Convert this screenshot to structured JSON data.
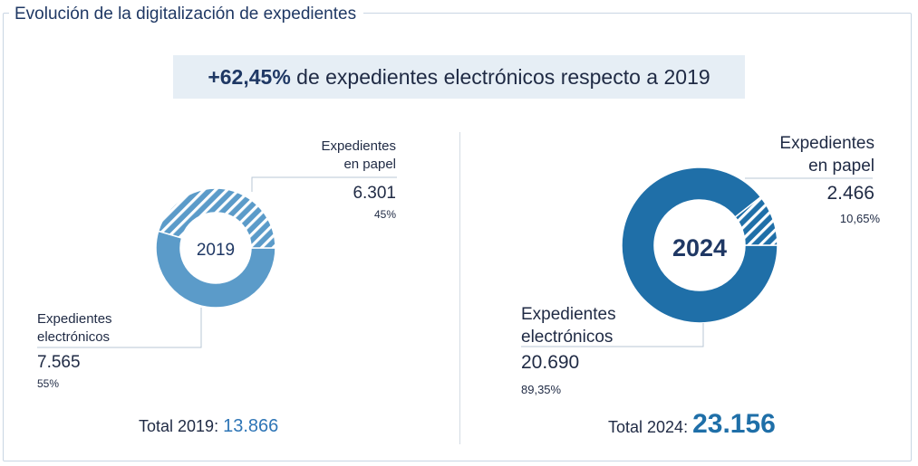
{
  "title": "Evolución de la digitalización de expedientes",
  "banner": {
    "highlight": "+62,45%",
    "text": "de expedientes electrónicos respecto a 2019"
  },
  "colors": {
    "light": "#5b9bc9",
    "dark": "#1f6fa8",
    "navy": "#1f3864",
    "total19": "#2e75b6"
  },
  "chart_data": [
    {
      "type": "pie",
      "title": "2019",
      "categories": [
        "Expedientes electrónicos",
        "Expedientes en papel"
      ],
      "values": [
        7565,
        6301
      ],
      "percent_labels": [
        "55%",
        "45%"
      ],
      "value_labels": [
        "7.565",
        "6.301"
      ],
      "total_label": "Total 2019:",
      "total_value": "13.866"
    },
    {
      "type": "pie",
      "title": "2024",
      "categories": [
        "Expedientes electrónicos",
        "Expedientes en papel"
      ],
      "values": [
        20690,
        2466
      ],
      "percent_labels": [
        "89,35%",
        "10,65%"
      ],
      "value_labels": [
        "20.690",
        "2.466"
      ],
      "total_label": "Total 2024:",
      "total_value": "23.156"
    }
  ],
  "labels": {
    "c19_paper_l1": "Expedientes",
    "c19_paper_l2": "en papel",
    "c19_elec_l1": "Expedientes",
    "c19_elec_l2": "electrónicos",
    "c24_paper_l1": "Expedientes",
    "c24_paper_l2": "en papel",
    "c24_elec_l1": "Expedientes",
    "c24_elec_l2": "electrónicos"
  }
}
